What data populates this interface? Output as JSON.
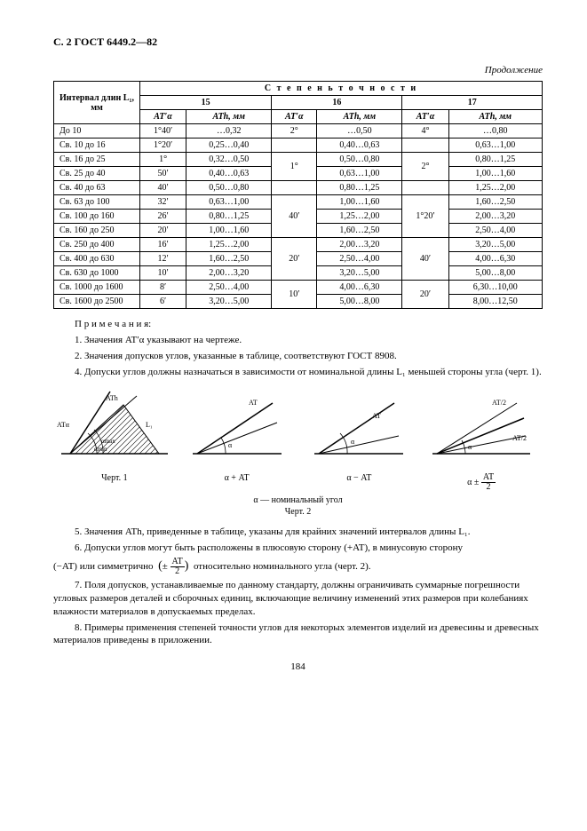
{
  "header": "С. 2 ГОСТ 6449.2—82",
  "continuation": "Продолжение",
  "table": {
    "col_interval": "Интервал длин L₁, мм",
    "accuracy_title": "С т е п е н ь  т о ч н о с т и",
    "groups": [
      "15",
      "16",
      "17"
    ],
    "sub_a": "AT′α",
    "sub_b": "ATh, мм",
    "rows": [
      {
        "i": "До 10",
        "a15": "1°40′",
        "b15": "…0,32",
        "a16": "2°",
        "b16": "…0,50",
        "a17": "4°",
        "b17": "…0,80",
        "ma16": 1,
        "ma17": 1
      },
      {
        "i": "Св. 10 до 16",
        "a15": "1°20′",
        "b15": "0,25…0,40",
        "a16": "",
        "b16": "0,40…0,63",
        "a17": "",
        "b17": "0,63…1,00"
      },
      {
        "i": "Св. 16 до 25",
        "a15": "1°",
        "b15": "0,32…0,50",
        "a16": "1°",
        "b16": "0,50…0,80",
        "a17": "2°",
        "b17": "0,80…1,25",
        "ma16": 2,
        "ma17": 2
      },
      {
        "i": "Св. 25 до 40",
        "a15": "50′",
        "b15": "0,40…0,63",
        "a16": "",
        "b16": "0,63…1,00",
        "a17": "",
        "b17": "1,00…1,60"
      },
      {
        "i": "Св. 40 до 63",
        "a15": "40′",
        "b15": "0,50…0,80",
        "a16": "",
        "b16": "0,80…1,25",
        "a17": "",
        "b17": "1,25…2,00"
      },
      {
        "i": "Св. 63 до 100",
        "a15": "32′",
        "b15": "0,63…1,00",
        "a16": "40′",
        "b16": "1,00…1,60",
        "a17": "1°20′",
        "b17": "1,60…2,50",
        "ma16": 3,
        "ma17": 3
      },
      {
        "i": "Св. 100 до 160",
        "a15": "26′",
        "b15": "0,80…1,25",
        "a16": "",
        "b16": "1,25…2,00",
        "a17": "",
        "b17": "2,00…3,20"
      },
      {
        "i": "Св. 160 до 250",
        "a15": "20′",
        "b15": "1,00…1,60",
        "a16": "",
        "b16": "1,60…2,50",
        "a17": "",
        "b17": "2,50…4,00"
      },
      {
        "i": "Св. 250 до 400",
        "a15": "16′",
        "b15": "1,25…2,00",
        "a16": "20′",
        "b16": "2,00…3,20",
        "a17": "40′",
        "b17": "3,20…5,00",
        "ma16": 3,
        "ma17": 3
      },
      {
        "i": "Св. 400 до 630",
        "a15": "12′",
        "b15": "1,60…2,50",
        "a16": "",
        "b16": "2,50…4,00",
        "a17": "",
        "b17": "4,00…6,30"
      },
      {
        "i": "Св. 630 до 1000",
        "a15": "10′",
        "b15": "2,00…3,20",
        "a16": "",
        "b16": "3,20…5,00",
        "a17": "",
        "b17": "5,00…8,00"
      },
      {
        "i": "Св. 1000 до 1600",
        "a15": "8′",
        "b15": "2,50…4,00",
        "a16": "10′",
        "b16": "4,00…6,30",
        "a17": "20′",
        "b17": "6,30…10,00",
        "ma16": 3,
        "ma17": 3
      },
      {
        "i": "Св. 1600 до 2500",
        "a15": "6′",
        "b15": "3,20…5,00",
        "a16": "",
        "b16": "5,00…8,00",
        "a17": "",
        "b17": "8,00…12,50"
      }
    ]
  },
  "notes": {
    "n_title": "П р и м е ч а н и я:",
    "n1": "1. Значения AT′α указывают на чертеже.",
    "n2": "2. Значения допусков углов, указанные в таблице, соответствуют ГОСТ 8908.",
    "n4": "4. Допуски углов должны назначаться в зависимости от номинальной длины L₁ меньшей стороны угла (черт. 1).",
    "n5": "5. Значения ATh, приведенные в таблице, указаны для крайних значений интервалов длины L₁.",
    "n6a": "6. Допуски углов могут быть расположены в плюсовую сторону (+AT), в минусовую сторону",
    "n6b": "(−AT) или симметрично",
    "n6c": "относительно номинального угла (черт. 2).",
    "n7": "7. Поля допусков, устанавливаемые по данному стандарту, должны ограничивать суммарные погрешности угловых размеров деталей и сборочных единиц, включающие величину изменений этих размеров при колебаниях влажности материалов в допускаемых пределах.",
    "n8": "8. Примеры применения степеней точности углов для некоторых элементов изделий из древесины и древесных материалов приведены в приложении."
  },
  "figs": {
    "c1": "Черт. 1",
    "nom": "α — номинальный угол",
    "c2": "Черт. 2",
    "l1": "ATh",
    "l2": "ATα",
    "l3": "αmax",
    "l4": "αmin",
    "l5": "L₁",
    "fa": "AT",
    "fb": "α",
    "fc": "α + AT",
    "fd": "α − AT",
    "fe": "AT/2",
    "ff": "α ± "
  },
  "frac": {
    "num": "AT",
    "den": "2"
  },
  "pagenum": "184"
}
